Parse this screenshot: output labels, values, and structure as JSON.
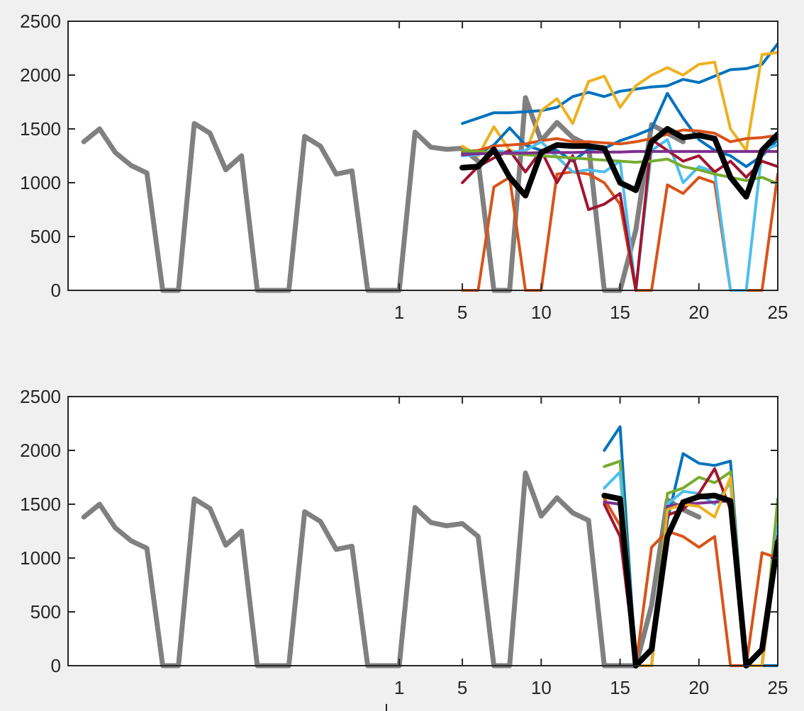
{
  "chart_data": [
    {
      "type": "line",
      "panel": "top",
      "title": "",
      "xlabel": "",
      "ylabel": "",
      "ylim": [
        0,
        2500
      ],
      "yticks": [
        0,
        500,
        1000,
        1500,
        2000,
        2500
      ],
      "ytick_labels": [
        "0",
        "500",
        "1000",
        "1500",
        "2000",
        "2500"
      ],
      "xlim": [
        -20,
        25
      ],
      "xticks": [
        1,
        5,
        10,
        15,
        20,
        25
      ],
      "xtick_labels": [
        "1",
        "5",
        "10",
        "15",
        "20",
        "25"
      ],
      "grid": false,
      "legend": "none",
      "history": {
        "color": "#808080",
        "x": [
          -19,
          -18,
          -17,
          -16,
          -15,
          -14,
          -13,
          -12,
          -11,
          -10,
          -9,
          -8,
          -7,
          -6,
          -5,
          -4,
          -3,
          -2,
          -1,
          0,
          1,
          2,
          3,
          4,
          5,
          6,
          7,
          8,
          9,
          10,
          11,
          12,
          13,
          14,
          15,
          16,
          17,
          18,
          19
        ],
        "y": [
          1380,
          1500,
          1280,
          1160,
          1090,
          0,
          0,
          1550,
          1460,
          1120,
          1250,
          0,
          0,
          0,
          1430,
          1340,
          1080,
          1110,
          0,
          0,
          0,
          1470,
          1330,
          1310,
          1320,
          1200,
          0,
          0,
          1790,
          1390,
          1560,
          1420,
          1350,
          0,
          0,
          560,
          1540,
          1460,
          1380
        ]
      },
      "series": [
        {
          "color": "#0072BD",
          "x": [
            5,
            6,
            7,
            8,
            9,
            10,
            11,
            12,
            13,
            14,
            15,
            16,
            17,
            18,
            19,
            20,
            21,
            22,
            23,
            24,
            25
          ],
          "y": [
            1550,
            1600,
            1650,
            1650,
            1660,
            1670,
            1700,
            1800,
            1840,
            1800,
            1850,
            1870,
            1890,
            1900,
            1960,
            1930,
            1990,
            2050,
            2060,
            2100,
            2290
          ]
        },
        {
          "color": "#EDB120",
          "x": [
            5,
            6,
            7,
            8,
            9,
            10,
            11,
            12,
            13,
            14,
            15,
            16,
            17,
            18,
            19,
            20,
            21,
            22,
            23,
            24,
            25
          ],
          "y": [
            1340,
            1250,
            1520,
            1300,
            1270,
            1670,
            1780,
            1550,
            1940,
            1990,
            1700,
            1900,
            2000,
            2070,
            2000,
            2100,
            2120,
            1500,
            1300,
            2190,
            2210
          ]
        },
        {
          "color": "#0072BD",
          "x": [
            5,
            6,
            7,
            8,
            9,
            10,
            11,
            12,
            13,
            14,
            15,
            16,
            17,
            18,
            19,
            20,
            21,
            22,
            23,
            24,
            25
          ],
          "y": [
            1280,
            1270,
            1350,
            1510,
            1350,
            1300,
            1300,
            1200,
            1310,
            1320,
            1390,
            1440,
            1500,
            1830,
            1600,
            1400,
            1300,
            1250,
            1150,
            1250,
            1400
          ]
        },
        {
          "color": "#D95319",
          "x": [
            5,
            6,
            7,
            8,
            9,
            10,
            11,
            12,
            13,
            14,
            15,
            16,
            17,
            18,
            19,
            20,
            21,
            22,
            23,
            24,
            25
          ],
          "y": [
            0,
            0,
            960,
            1050,
            0,
            0,
            1080,
            1100,
            1080,
            1000,
            800,
            0,
            0,
            980,
            900,
            1050,
            1000,
            0,
            0,
            0,
            1080
          ]
        },
        {
          "color": "#D95319",
          "x": [
            5,
            6,
            7,
            8,
            9,
            10,
            11,
            12,
            13,
            14,
            15,
            16,
            17,
            18,
            19,
            20,
            21,
            22,
            23,
            24,
            25
          ],
          "y": [
            1290,
            1300,
            1340,
            1350,
            1360,
            1390,
            1410,
            1380,
            1380,
            1370,
            1360,
            1380,
            1410,
            1450,
            1490,
            1480,
            1460,
            1380,
            1410,
            1420,
            1440
          ]
        },
        {
          "color": "#4DBEEE",
          "x": [
            5,
            6,
            7,
            8,
            9,
            10,
            11,
            12,
            13,
            14,
            15,
            16,
            17,
            18,
            19,
            20,
            21,
            22,
            23,
            24,
            25
          ],
          "y": [
            1250,
            1260,
            1300,
            1280,
            1300,
            1380,
            1240,
            1100,
            1120,
            1100,
            1200,
            0,
            1300,
            1400,
            1000,
            1150,
            1100,
            0,
            0,
            1300,
            1350
          ]
        },
        {
          "color": "#A2142F",
          "x": [
            5,
            6,
            7,
            8,
            9,
            10,
            11,
            12,
            13,
            14,
            15,
            16,
            17,
            18,
            19,
            20,
            21,
            22,
            23,
            24,
            25
          ],
          "y": [
            1000,
            1150,
            1230,
            1300,
            1100,
            1300,
            1000,
            1250,
            750,
            800,
            900,
            0,
            1400,
            1300,
            1200,
            1250,
            1100,
            1200,
            1050,
            1200,
            1150
          ]
        },
        {
          "color": "#77AC30",
          "x": [
            5,
            6,
            7,
            8,
            9,
            10,
            11,
            12,
            13,
            14,
            15,
            16,
            17,
            18,
            19,
            20,
            21,
            22,
            23,
            24,
            25
          ],
          "y": [
            1300,
            1290,
            1280,
            1270,
            1260,
            1250,
            1240,
            1230,
            1220,
            1210,
            1200,
            1190,
            1200,
            1220,
            1150,
            1120,
            1080,
            1050,
            1020,
            1050,
            990
          ]
        },
        {
          "color": "#7E2F8E",
          "x": [
            5,
            6,
            7,
            8,
            9,
            10,
            11,
            12,
            13,
            14,
            15,
            16,
            17,
            18,
            19,
            20,
            21,
            22,
            23,
            24,
            25
          ],
          "y": [
            1260,
            1270,
            1270,
            1275,
            1275,
            1280,
            1280,
            1280,
            1285,
            1285,
            1285,
            1290,
            1290,
            1290,
            1290,
            1290,
            1290,
            1290,
            1290,
            1290,
            1290
          ]
        },
        {
          "color": "#000000",
          "bold": true,
          "x": [
            5,
            6,
            7,
            8,
            9,
            10,
            11,
            12,
            13,
            14,
            15,
            16,
            17,
            18,
            19,
            20,
            21,
            22,
            23,
            24,
            25
          ],
          "y": [
            1140,
            1150,
            1310,
            1050,
            880,
            1280,
            1350,
            1340,
            1340,
            1320,
            1000,
            930,
            1380,
            1500,
            1420,
            1440,
            1410,
            1050,
            870,
            1300,
            1450
          ]
        }
      ]
    },
    {
      "type": "line",
      "panel": "bottom",
      "title": "",
      "xlabel": "",
      "ylabel": "",
      "ylim": [
        0,
        2500
      ],
      "yticks": [
        0,
        500,
        1000,
        1500,
        2000,
        2500
      ],
      "ytick_labels": [
        "0",
        "500",
        "1000",
        "1500",
        "2000",
        "2500"
      ],
      "xlim": [
        -20,
        25
      ],
      "xticks": [
        1,
        5,
        10,
        15,
        20,
        25
      ],
      "xtick_labels": [
        "1",
        "5",
        "10",
        "15",
        "20",
        "25"
      ],
      "grid": false,
      "legend": "none",
      "history": {
        "color": "#808080",
        "x": [
          -19,
          -18,
          -17,
          -16,
          -15,
          -14,
          -13,
          -12,
          -11,
          -10,
          -9,
          -8,
          -7,
          -6,
          -5,
          -4,
          -3,
          -2,
          -1,
          0,
          1,
          2,
          3,
          4,
          5,
          6,
          7,
          8,
          9,
          10,
          11,
          12,
          13,
          14,
          15,
          16,
          17,
          18,
          19,
          20
        ],
        "y": [
          1380,
          1500,
          1280,
          1160,
          1090,
          0,
          0,
          1550,
          1460,
          1120,
          1250,
          0,
          0,
          0,
          1430,
          1340,
          1080,
          1110,
          0,
          0,
          0,
          1470,
          1330,
          1300,
          1320,
          1200,
          0,
          0,
          1790,
          1390,
          1560,
          1420,
          1350,
          0,
          0,
          0,
          560,
          1540,
          1450,
          1380
        ]
      },
      "series": [
        {
          "color": "#0072BD",
          "x": [
            14,
            15,
            16,
            17,
            18,
            19,
            20,
            21,
            22,
            23,
            24,
            25
          ],
          "y": [
            2000,
            2220,
            0,
            0,
            1350,
            1970,
            1880,
            1860,
            1900,
            0,
            0,
            0
          ]
        },
        {
          "color": "#77AC30",
          "x": [
            14,
            15,
            16,
            17,
            18,
            19,
            20,
            21,
            22,
            23,
            24,
            25
          ],
          "y": [
            1850,
            1900,
            0,
            0,
            1600,
            1650,
            1750,
            1700,
            1800,
            0,
            0,
            1550
          ]
        },
        {
          "color": "#4DBEEE",
          "x": [
            14,
            15,
            16,
            17,
            18,
            19,
            20,
            21,
            22,
            23,
            24,
            25
          ],
          "y": [
            1650,
            1800,
            0,
            0,
            1500,
            1620,
            1600,
            1500,
            1700,
            0,
            0,
            1300
          ]
        },
        {
          "color": "#D95319",
          "x": [
            14,
            15,
            16,
            17,
            18,
            19,
            20,
            21,
            22,
            23,
            24,
            25
          ],
          "y": [
            1550,
            1300,
            0,
            1100,
            1250,
            1200,
            1100,
            1200,
            0,
            0,
            1050,
            1000
          ]
        },
        {
          "color": "#A2142F",
          "x": [
            14,
            15,
            16,
            17,
            18,
            19,
            20,
            21,
            22,
            23,
            24,
            25
          ],
          "y": [
            1500,
            1200,
            0,
            0,
            1400,
            1450,
            1600,
            1830,
            1450,
            0,
            0,
            1200
          ]
        },
        {
          "color": "#7E2F8E",
          "x": [
            14,
            15,
            16,
            17,
            18,
            19,
            20,
            21,
            22,
            23,
            24,
            25
          ],
          "y": [
            1520,
            1500,
            0,
            0,
            1480,
            1500,
            1510,
            1520,
            1530,
            0,
            0,
            1100
          ]
        },
        {
          "color": "#EDB120",
          "x": [
            14,
            15,
            16,
            17,
            18,
            19,
            20,
            21,
            22,
            23,
            24,
            25
          ],
          "y": [
            1560,
            1550,
            0,
            0,
            1450,
            1500,
            1480,
            1380,
            1750,
            0,
            0,
            1150
          ]
        },
        {
          "color": "#000000",
          "bold": true,
          "x": [
            14,
            15,
            16,
            17,
            18,
            19,
            20,
            21,
            22,
            23,
            24,
            25
          ],
          "y": [
            1580,
            1550,
            0,
            150,
            1200,
            1520,
            1570,
            1580,
            1530,
            0,
            150,
            1150
          ]
        }
      ]
    }
  ]
}
